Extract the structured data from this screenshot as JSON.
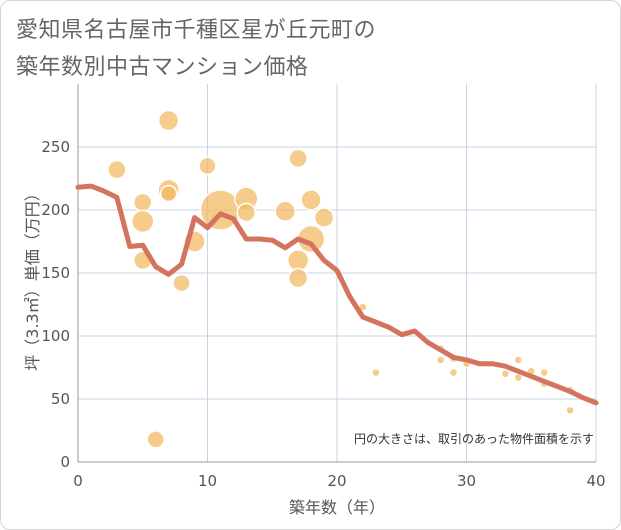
{
  "title_line1": "愛知県名古屋市千種区星が丘元町の",
  "title_line2": "築年数別中古マンション価格",
  "colors": {
    "line": "#d4735e",
    "bubble": "#f3b95f",
    "grid": "#c7d5e6",
    "axis": "#999999"
  },
  "chart_data": {
    "type": "scatter",
    "title": "愛知県名古屋市千種区星が丘元町の築年数別中古マンション価格",
    "xlabel": "築年数（年）",
    "ylabel": "坪（3.3㎡）単価（万円）",
    "xlim": [
      0,
      40
    ],
    "ylim": [
      0,
      250
    ],
    "xticks": [
      0,
      10,
      20,
      30,
      40
    ],
    "yticks": [
      0,
      50,
      100,
      150,
      200,
      250
    ],
    "grid": true,
    "note": "円の大きさは、取引のあった物件面積を示す",
    "series": [
      {
        "type": "line",
        "x": [
          0,
          1,
          2,
          3,
          4,
          5,
          6,
          7,
          8,
          9,
          10,
          11,
          12,
          13,
          14,
          15,
          16,
          17,
          18,
          19,
          20,
          21,
          22,
          23,
          24,
          25,
          26,
          27,
          28,
          29,
          30,
          31,
          32,
          33,
          34,
          35,
          36,
          37,
          38,
          39,
          40
        ],
        "values": [
          218,
          219,
          215,
          210,
          171,
          172,
          155,
          149,
          157,
          194,
          186,
          197,
          193,
          177,
          177,
          176,
          170,
          177,
          173,
          160,
          152,
          131,
          115,
          111,
          107,
          101,
          104,
          95,
          89,
          83,
          81,
          78,
          78,
          76,
          72,
          68,
          64,
          60,
          56,
          51,
          47
        ]
      },
      {
        "type": "bubble",
        "points": [
          {
            "x": 3,
            "y": 232,
            "size": 18
          },
          {
            "x": 5,
            "y": 206,
            "size": 18
          },
          {
            "x": 5,
            "y": 191,
            "size": 22
          },
          {
            "x": 5,
            "y": 160,
            "size": 18
          },
          {
            "x": 6,
            "y": 18,
            "size": 17
          },
          {
            "x": 7,
            "y": 271,
            "size": 20
          },
          {
            "x": 7,
            "y": 216,
            "size": 21
          },
          {
            "x": 7,
            "y": 213,
            "size": 16
          },
          {
            "x": 8,
            "y": 142,
            "size": 17
          },
          {
            "x": 9,
            "y": 175,
            "size": 21
          },
          {
            "x": 10,
            "y": 235,
            "size": 17
          },
          {
            "x": 11,
            "y": 200,
            "size": 40
          },
          {
            "x": 13,
            "y": 209,
            "size": 23
          },
          {
            "x": 13,
            "y": 198,
            "size": 18
          },
          {
            "x": 16,
            "y": 199,
            "size": 20
          },
          {
            "x": 17,
            "y": 241,
            "size": 18
          },
          {
            "x": 17,
            "y": 160,
            "size": 21
          },
          {
            "x": 17,
            "y": 146,
            "size": 19
          },
          {
            "x": 18,
            "y": 208,
            "size": 20
          },
          {
            "x": 18,
            "y": 177,
            "size": 27
          },
          {
            "x": 19,
            "y": 194,
            "size": 19
          },
          {
            "x": 22,
            "y": 123,
            "size": 8
          },
          {
            "x": 23,
            "y": 71,
            "size": 8
          },
          {
            "x": 28,
            "y": 81,
            "size": 8
          },
          {
            "x": 28,
            "y": 90,
            "size": 8
          },
          {
            "x": 29,
            "y": 82,
            "size": 8
          },
          {
            "x": 29,
            "y": 71,
            "size": 8
          },
          {
            "x": 30,
            "y": 78,
            "size": 8
          },
          {
            "x": 33,
            "y": 70,
            "size": 8
          },
          {
            "x": 34,
            "y": 81,
            "size": 8
          },
          {
            "x": 34,
            "y": 67,
            "size": 8
          },
          {
            "x": 35,
            "y": 72,
            "size": 8
          },
          {
            "x": 36,
            "y": 71,
            "size": 8
          },
          {
            "x": 36,
            "y": 62,
            "size": 8
          },
          {
            "x": 38,
            "y": 57,
            "size": 8
          },
          {
            "x": 38,
            "y": 41,
            "size": 8
          }
        ]
      }
    ]
  }
}
